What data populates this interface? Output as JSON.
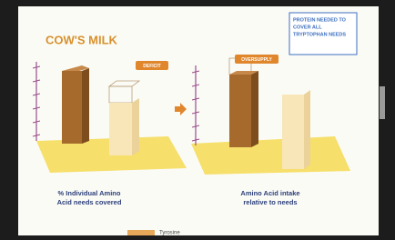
{
  "slide": {
    "title": "COW'S MILK",
    "note_box": [
      "PROTEIN NEEDED TO",
      "COVER ALL",
      "TRYPTOPHAN NEEDS"
    ],
    "callout_left": "DEFICIT",
    "callout_right": "OVERSUPPLY",
    "caption_left": [
      "% Individual Amino",
      "Acid needs covered"
    ],
    "caption_right": [
      "Amino Acid intake",
      "relative to needs"
    ],
    "legend": [
      "Tyrosine"
    ]
  }
}
